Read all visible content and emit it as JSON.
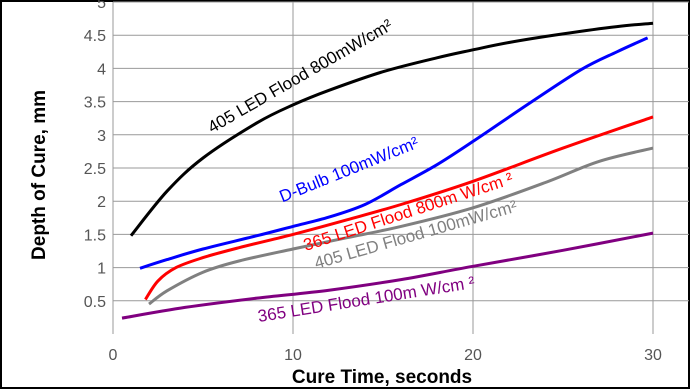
{
  "chart_data": {
    "type": "line",
    "xlabel": "Cure Time, seconds",
    "ylabel": "Depth of Cure, mm",
    "xlim": [
      0,
      32
    ],
    "ylim": [
      0,
      5
    ],
    "x_ticks": [
      0,
      10,
      20,
      30
    ],
    "x_tick_labels": [
      "0",
      "10",
      "20",
      "30"
    ],
    "y_ticks": [
      0.5,
      1,
      1.5,
      2,
      2.5,
      3,
      3.5,
      4,
      4.5,
      5
    ],
    "y_tick_labels": [
      "0.5",
      "1",
      "1.5",
      "2",
      "2.5",
      "3",
      "3.5",
      "4",
      "4.5",
      "5"
    ],
    "grid": true,
    "legend": "none",
    "series": [
      {
        "name": "405 LED Flood 800mW/cm²",
        "color": "#000000",
        "x": [
          1,
          3,
          5,
          8,
          10,
          12,
          15,
          18,
          20,
          22,
          25,
          28,
          30
        ],
        "y": [
          1.48,
          2.15,
          2.65,
          3.18,
          3.45,
          3.67,
          3.95,
          4.16,
          4.28,
          4.39,
          4.52,
          4.63,
          4.68
        ]
      },
      {
        "name": "D-Bulb 100mW/cm²",
        "color": "#0000ff",
        "x": [
          1.5,
          3,
          5,
          8,
          10,
          12,
          14,
          16,
          18,
          20,
          23,
          26,
          28,
          29.7
        ],
        "y": [
          0.99,
          1.12,
          1.28,
          1.48,
          1.62,
          1.76,
          1.95,
          2.25,
          2.55,
          2.9,
          3.45,
          3.98,
          4.25,
          4.46
        ]
      },
      {
        "name": "365 LED Flood 800m W/cm ²",
        "color": "#ff0000",
        "x": [
          1.8,
          2.5,
          3.5,
          5,
          7,
          10,
          13,
          16,
          20,
          25,
          30
        ],
        "y": [
          0.52,
          0.8,
          1.0,
          1.15,
          1.3,
          1.5,
          1.72,
          1.95,
          2.3,
          2.8,
          3.27
        ]
      },
      {
        "name": "405 LED Flood 100mW/cm²",
        "color": "#808080",
        "x": [
          2,
          3,
          5,
          7,
          10,
          13,
          16,
          20,
          24,
          27,
          30
        ],
        "y": [
          0.45,
          0.65,
          0.93,
          1.1,
          1.28,
          1.45,
          1.62,
          1.9,
          2.28,
          2.6,
          2.8
        ]
      },
      {
        "name": "365 LED Flood 100m W/cm ²",
        "color": "#800080",
        "x": [
          0.5,
          4,
          8,
          12,
          16,
          20,
          25,
          30
        ],
        "y": [
          0.24,
          0.4,
          0.54,
          0.66,
          0.82,
          1.02,
          1.26,
          1.52
        ]
      }
    ],
    "series_labels": [
      {
        "text": "405 LED Flood 800mW/cm²",
        "color": "#000000",
        "x": 5.5,
        "y": 3.02,
        "angle": -30
      },
      {
        "text": "D-Bulb 100mW/cm²",
        "color": "#0000ff",
        "x": 9.4,
        "y": 1.98,
        "angle": -22
      },
      {
        "text": "365 LED Flood 800m W/cm ²",
        "color": "#ff0000",
        "x": 10.7,
        "y": 1.25,
        "angle": -18
      },
      {
        "text": "405 LED Flood 100mW/cm²",
        "color": "#808080",
        "x": 11.3,
        "y": 0.98,
        "angle": -16
      },
      {
        "text": "365 LED Flood 100m W/cm ²",
        "color": "#800080",
        "x": 8.1,
        "y": 0.18,
        "angle": -9
      }
    ]
  }
}
